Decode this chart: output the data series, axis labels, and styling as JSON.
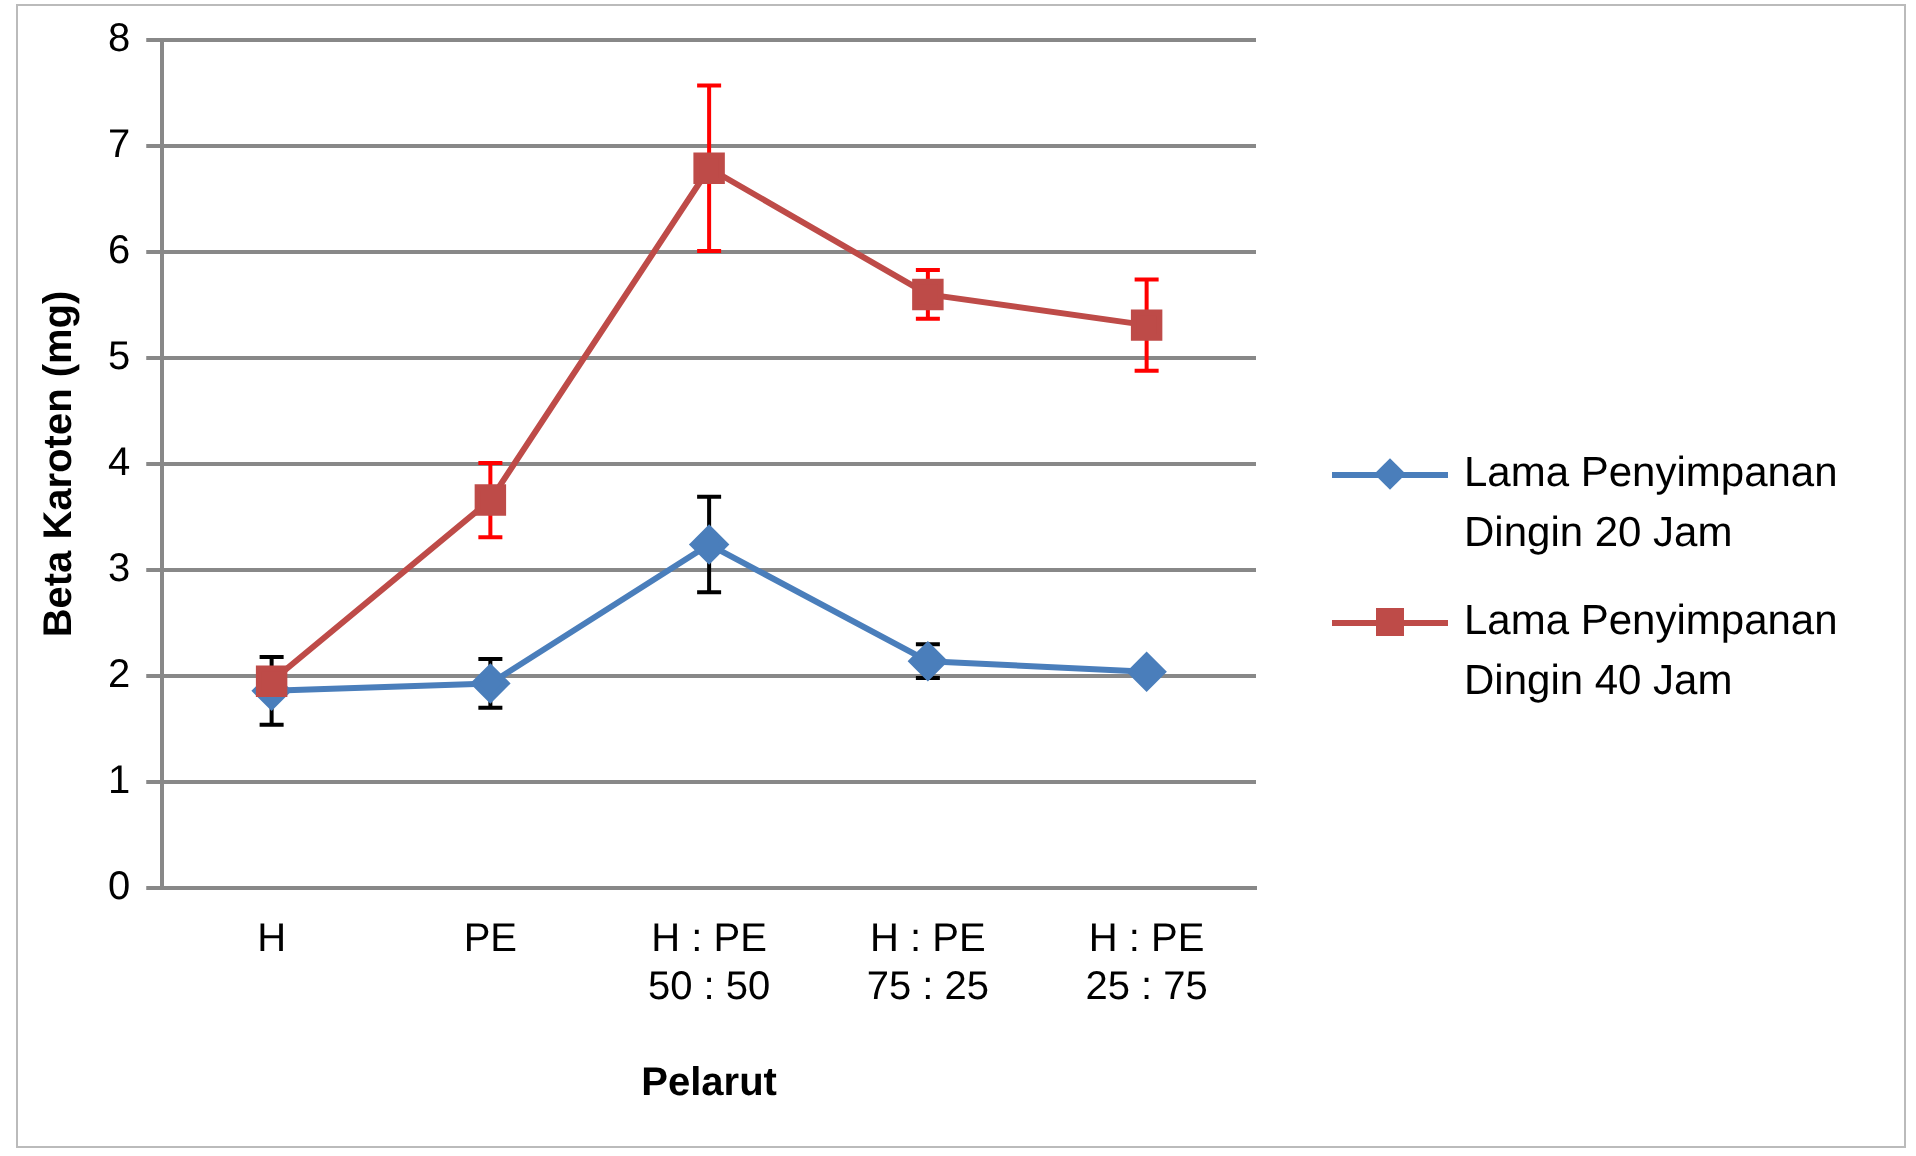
{
  "chart_data": {
    "type": "line",
    "xlabel": "Pelarut",
    "ylabel": "Beta Karoten (mg)",
    "categories": [
      "H",
      "PE",
      "H : PE\n50 : 50",
      "H : PE\n75 : 25",
      "H : PE\n25 : 75"
    ],
    "ylim": [
      0,
      8
    ],
    "yticks": [
      0,
      1,
      2,
      3,
      4,
      5,
      6,
      7,
      8
    ],
    "grid": "y",
    "legend": "right",
    "line_style": "solid",
    "series": [
      {
        "name": "Lama Penyimpanan Dingin 20 Jam",
        "color": "#4a7ebb",
        "marker": "diamond",
        "values": [
          1.86,
          1.93,
          3.24,
          2.14,
          2.04
        ],
        "errors": [
          0.32,
          0.23,
          0.45,
          0.16,
          0.03
        ]
      },
      {
        "name": "Lama Penyimpanan Dingin 40 Jam",
        "color": "#be4b48",
        "marker": "square",
        "values": [
          1.95,
          3.66,
          6.79,
          5.6,
          5.31
        ],
        "errors": [
          null,
          0.35,
          0.78,
          0.23,
          0.43
        ]
      }
    ]
  }
}
